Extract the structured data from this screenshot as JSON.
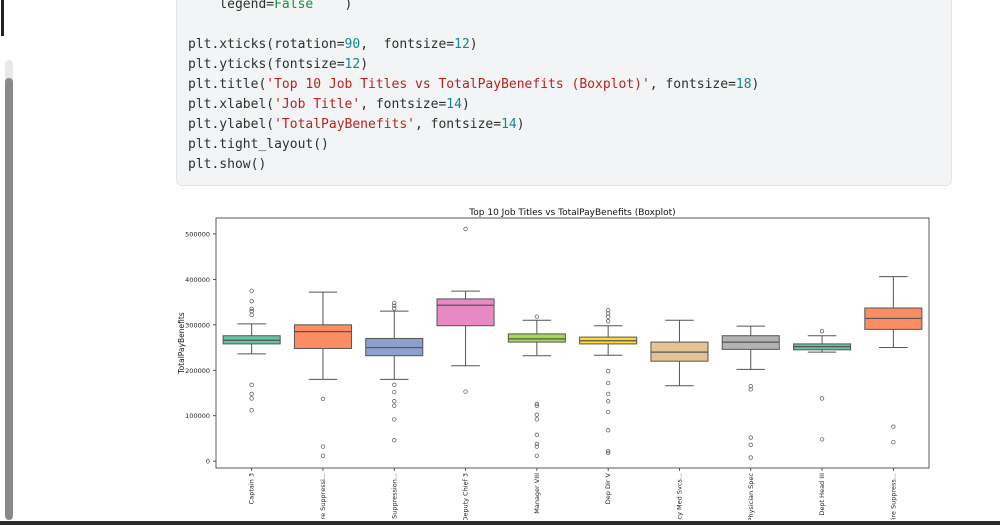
{
  "code": {
    "lines": [
      [
        {
          "t": "    legend=",
          "c": "plain"
        },
        {
          "t": "False",
          "c": "kw"
        },
        {
          "t": "    )",
          "c": "plain"
        }
      ],
      [],
      [
        {
          "t": "plt.xticks(rotation=",
          "c": "plain"
        },
        {
          "t": "90",
          "c": "num"
        },
        {
          "t": ",  fontsize=",
          "c": "plain"
        },
        {
          "t": "12",
          "c": "num"
        },
        {
          "t": ")",
          "c": "plain"
        }
      ],
      [
        {
          "t": "plt.yticks(fontsize=",
          "c": "plain"
        },
        {
          "t": "12",
          "c": "num"
        },
        {
          "t": ")",
          "c": "plain"
        }
      ],
      [
        {
          "t": "plt.title(",
          "c": "plain"
        },
        {
          "t": "'Top 10 Job Titles vs TotalPayBenefits (Boxplot)'",
          "c": "str"
        },
        {
          "t": ", fontsize=",
          "c": "plain"
        },
        {
          "t": "18",
          "c": "num"
        },
        {
          "t": ")",
          "c": "plain"
        }
      ],
      [
        {
          "t": "plt.xlabel(",
          "c": "plain"
        },
        {
          "t": "'Job Title'",
          "c": "str"
        },
        {
          "t": ", fontsize=",
          "c": "plain"
        },
        {
          "t": "14",
          "c": "num"
        },
        {
          "t": ")",
          "c": "plain"
        }
      ],
      [
        {
          "t": "plt.ylabel(",
          "c": "plain"
        },
        {
          "t": "'TotalPayBenefits'",
          "c": "str"
        },
        {
          "t": ", fontsize=",
          "c": "plain"
        },
        {
          "t": "14",
          "c": "num"
        },
        {
          "t": ")",
          "c": "plain"
        }
      ],
      [
        {
          "t": "plt.tight_layout()",
          "c": "plain"
        }
      ],
      [
        {
          "t": "plt.show()",
          "c": "plain"
        }
      ]
    ],
    "colors": {
      "kw": "#1a8f3a",
      "num": "#128a8a",
      "str": "#b5231f",
      "plain": "#2f2f2f"
    }
  },
  "chart_data": {
    "type": "boxplot",
    "title": "Top 10 Job Titles vs TotalPayBenefits (Boxplot)",
    "ylabel": "TotalPayBenefits",
    "xlabel": "",
    "ylim": [
      -15000,
      535000
    ],
    "yticks": [
      0,
      100000,
      200000,
      300000,
      400000,
      500000
    ],
    "yticklabels": [
      "0",
      "100000",
      "200000",
      "300000",
      "400000",
      "500000"
    ],
    "grid": false,
    "legend": "none",
    "boxes": [
      {
        "label": "Captain 3",
        "color": "#66c2a5",
        "q1": 258000,
        "median": 266000,
        "q3": 276000,
        "whisker_low": 236000,
        "whisker_high": 302000,
        "outliers": [
          375000,
          352000,
          335000,
          330000,
          322000,
          168000,
          148000,
          138000,
          112000
        ]
      },
      {
        "label": "..., Fire Suppressi...",
        "color": "#fc8d62",
        "q1": 248000,
        "median": 285000,
        "q3": 300000,
        "whisker_low": 180000,
        "whisker_high": 372000,
        "outliers": [
          137000,
          32000,
          12000
        ]
      },
      {
        "label": "...ire Suppression...",
        "color": "#8da0cb",
        "q1": 232000,
        "median": 250000,
        "q3": 270000,
        "whisker_low": 180000,
        "whisker_high": 330000,
        "outliers": [
          348000,
          342000,
          336000,
          168000,
          152000,
          132000,
          122000,
          92000,
          46000
        ]
      },
      {
        "label": "Deputy Chief 3",
        "color": "#e78ac3",
        "q1": 298000,
        "median": 343000,
        "q3": 357000,
        "whisker_low": 210000,
        "whisker_high": 374000,
        "outliers": [
          511000,
          153000
        ]
      },
      {
        "label": "Manager VIII",
        "color": "#a6d854",
        "q1": 262000,
        "median": 269000,
        "q3": 280000,
        "whisker_low": 232000,
        "whisker_high": 310000,
        "outliers": [
          318000,
          126000,
          122000,
          102000,
          92000,
          58000,
          38000,
          32000,
          12000
        ]
      },
      {
        "label": "Dep Dir V",
        "color": "#ffd92f",
        "q1": 258000,
        "median": 265000,
        "q3": 273000,
        "whisker_low": 233000,
        "whisker_high": 298000,
        "outliers": [
          332000,
          325000,
          318000,
          308000,
          198000,
          172000,
          148000,
          132000,
          108000,
          68000,
          22000,
          18000
        ]
      },
      {
        "label": "...gency Med Svcs...",
        "color": "#e5c494",
        "q1": 220000,
        "median": 240000,
        "q3": 262000,
        "whisker_low": 166000,
        "whisker_high": 310000,
        "outliers": []
      },
      {
        "label": "Physician Spec",
        "color": "#b3b3b3",
        "q1": 246000,
        "median": 262000,
        "q3": 276000,
        "whisker_low": 202000,
        "whisker_high": 297000,
        "outliers": [
          165000,
          158000,
          52000,
          36000,
          8000
        ]
      },
      {
        "label": "Dept Head III",
        "color": "#66c2a5",
        "q1": 245000,
        "median": 252000,
        "q3": 258000,
        "whisker_low": 240000,
        "whisker_high": 276000,
        "outliers": [
          286000,
          138000,
          48000
        ]
      },
      {
        "label": "...f, Fire Suppress...",
        "color": "#fc8d62",
        "q1": 290000,
        "median": 314000,
        "q3": 337000,
        "whisker_low": 250000,
        "whisker_high": 406000,
        "outliers": [
          76000,
          42000
        ]
      }
    ]
  }
}
